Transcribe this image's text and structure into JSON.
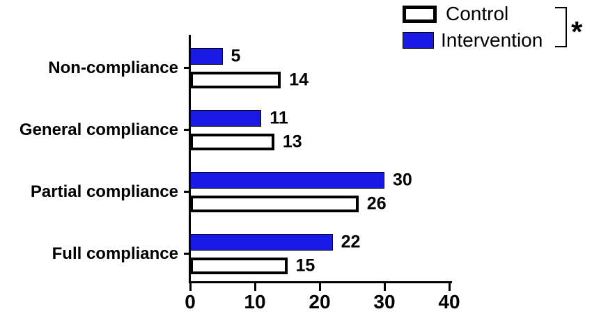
{
  "chart_data": {
    "type": "bar",
    "orientation": "horizontal",
    "title": "",
    "xlabel": "",
    "ylabel": "",
    "categories": [
      "Non-compliance",
      "General compliance",
      "Partial compliance",
      "Full compliance"
    ],
    "series": [
      {
        "name": "Intervention",
        "color": "#1a1ae6",
        "values": [
          5,
          11,
          30,
          22
        ]
      },
      {
        "name": "Control",
        "color": "#ffffff",
        "values": [
          14,
          13,
          26,
          15
        ]
      }
    ],
    "xlim": [
      0,
      40
    ],
    "x_ticks": [
      "0",
      "10",
      "20",
      "30",
      "40"
    ],
    "x_tick_values": [
      0,
      10,
      20,
      30,
      40
    ],
    "value_labels_shown": true,
    "grid": false,
    "legend_position": "top-right"
  },
  "legend": {
    "items": [
      {
        "label": "Control",
        "fill": "#ffffff",
        "border": "#000000"
      },
      {
        "label": "Intervention",
        "fill": "#1a1ae6",
        "border": "#000000"
      }
    ],
    "significance_marker": "*"
  },
  "colors": {
    "background": "#ffffff",
    "axis": "#000000",
    "text": "#000000",
    "intervention_blue": "#1a1ae6",
    "control_fill": "#ffffff"
  }
}
